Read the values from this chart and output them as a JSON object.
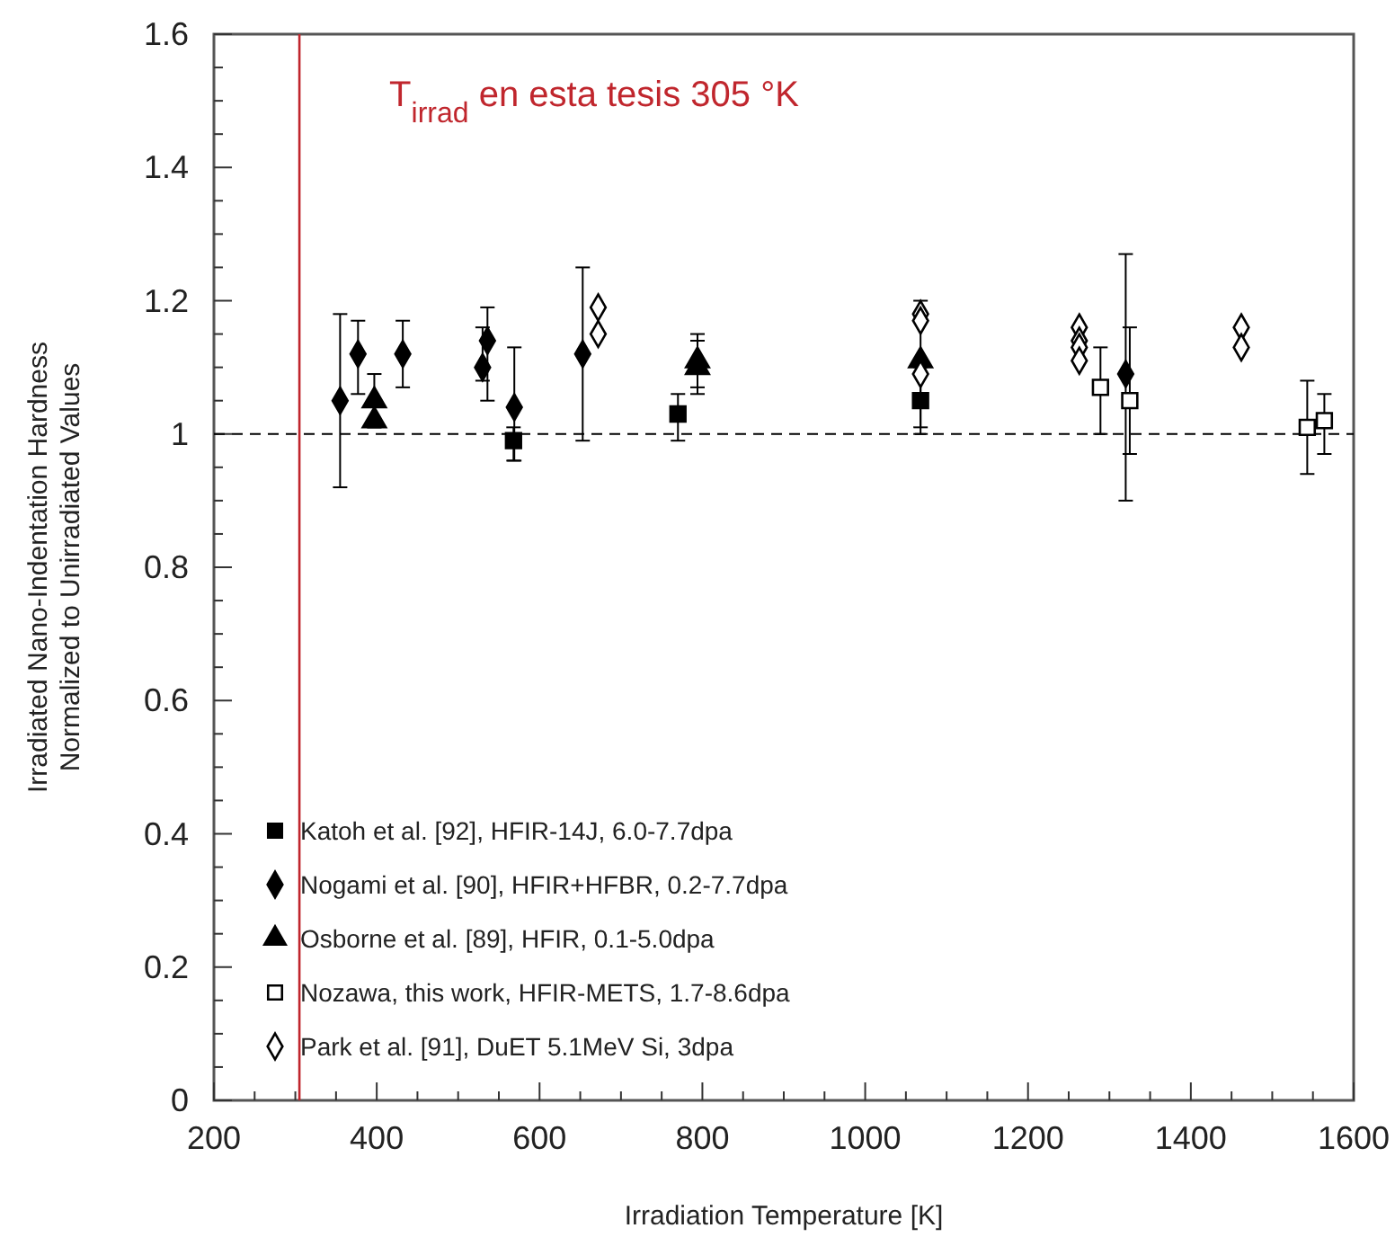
{
  "chart_data": {
    "type": "scatter",
    "xlabel": "Irradiation Temperature [K]",
    "ylabel": "Irradiated Nano-Indentation Hardness\nNormalized to Unirradiated Values",
    "xlim": [
      200,
      1600
    ],
    "ylim": [
      0,
      1.6
    ],
    "xticks": [
      200,
      {
        "value": 250,
        "label": null
      },
      {
        "value": 300,
        "label": null
      },
      {
        "value": 350,
        "label": null
      },
      400,
      {
        "value": 450,
        "label": null
      },
      {
        "value": 500,
        "label": null
      },
      {
        "value": 550,
        "label": null
      },
      600,
      {
        "value": 650,
        "label": null
      },
      {
        "value": 700,
        "label": null
      },
      {
        "value": 750,
        "label": null
      },
      800,
      {
        "value": 850,
        "label": null
      },
      {
        "value": 900,
        "label": null
      },
      {
        "value": 950,
        "label": null
      },
      1000,
      {
        "value": 1050,
        "label": null
      },
      {
        "value": 1100,
        "label": null
      },
      {
        "value": 1150,
        "label": null
      },
      1200,
      {
        "value": 1250,
        "label": null
      },
      {
        "value": 1300,
        "label": null
      },
      {
        "value": 1350,
        "label": null
      },
      1400,
      {
        "value": 1450,
        "label": null
      },
      {
        "value": 1500,
        "label": null
      },
      {
        "value": 1550,
        "label": null
      },
      1600
    ],
    "yticks": [
      0,
      {
        "value": 0.05,
        "label": null
      },
      {
        "value": 0.1,
        "label": null
      },
      {
        "value": 0.15,
        "label": null
      },
      0.2,
      {
        "value": 0.25,
        "label": null
      },
      {
        "value": 0.3,
        "label": null
      },
      {
        "value": 0.35,
        "label": null
      },
      0.4,
      {
        "value": 0.45,
        "label": null
      },
      {
        "value": 0.5,
        "label": null
      },
      {
        "value": 0.55,
        "label": null
      },
      0.6,
      {
        "value": 0.65,
        "label": null
      },
      {
        "value": 0.7,
        "label": null
      },
      {
        "value": 0.75,
        "label": null
      },
      0.8,
      {
        "value": 0.85,
        "label": null
      },
      {
        "value": 0.9,
        "label": null
      },
      {
        "value": 0.95,
        "label": null
      },
      1,
      {
        "value": 1.05,
        "label": null
      },
      {
        "value": 1.1,
        "label": null
      },
      {
        "value": 1.15,
        "label": null
      },
      1.2,
      {
        "value": 1.25,
        "label": null
      },
      {
        "value": 1.3,
        "label": null
      },
      {
        "value": 1.35,
        "label": null
      },
      1.4,
      {
        "value": 1.45,
        "label": null
      },
      {
        "value": 1.5,
        "label": null
      },
      {
        "value": 1.55,
        "label": null
      },
      1.6
    ],
    "legend": "bottom left",
    "grid": false,
    "ref_lines": [
      {
        "axis": "y",
        "value": 1,
        "color": "#000000",
        "line_style": "dashed"
      },
      {
        "axis": "x",
        "value": 305,
        "color": "#c0262d",
        "line_style": "solid",
        "label": "T$_{irrad}$ en esta tesis 305 °K"
      }
    ],
    "series": [
      {
        "name": "Katoh et al. [92], HFIR-14J, 6.0-7.7dpa",
        "marker": "square",
        "color": "#000000",
        "x": [
          568,
          770,
          1068
        ],
        "values": [
          0.99,
          1.03,
          1.05
        ],
        "errors": [
          [
            0.96,
            1.01
          ],
          [
            0.99,
            1.06
          ],
          [
            1.01,
            1.1
          ]
        ]
      },
      {
        "name": "Nogami et al. [90], HFIR+HFBR,  0.2-7.7dpa",
        "marker": "diamond",
        "color": "#000000",
        "x": [
          355,
          377,
          432,
          530,
          536,
          569,
          653,
          1320
        ],
        "values": [
          1.05,
          1.12,
          1.12,
          1.1,
          1.14,
          1.04,
          1.12,
          1.09
        ],
        "errors": [
          [
            0.92,
            1.18
          ],
          [
            1.06,
            1.17
          ],
          [
            1.07,
            1.17
          ],
          [
            1.08,
            1.16
          ],
          [
            1.05,
            1.19
          ],
          [
            0.96,
            1.13
          ],
          [
            0.99,
            1.25
          ],
          [
            0.9,
            1.27
          ]
        ]
      },
      {
        "name": "Osborne et al. [89], HFIR, 0.1-5.0dpa",
        "marker": "triangle",
        "color": "#000000",
        "x": [
          397,
          397,
          794,
          794,
          1068
        ],
        "values": [
          1.05,
          1.02,
          1.11,
          1.1,
          1.11
        ],
        "errors": [
          [
            1.01,
            1.09
          ],
          [
            1.01,
            1.05
          ],
          [
            1.06,
            1.15
          ],
          [
            1.07,
            1.14
          ],
          [
            1.0,
            1.2
          ]
        ]
      },
      {
        "name": "Nozawa, this work, HFIR-METS,  1.7-8.6dpa",
        "marker": "square",
        "color": "#ffffff",
        "x": [
          1289,
          1325,
          1543,
          1564
        ],
        "values": [
          1.07,
          1.05,
          1.01,
          1.02
        ],
        "errors": [
          [
            1.0,
            1.13
          ],
          [
            0.97,
            1.16
          ],
          [
            0.94,
            1.08
          ],
          [
            0.97,
            1.06
          ]
        ]
      },
      {
        "name": "Park et al. [91], DuET 5.1MeV Si, 3dpa",
        "marker": "diamond",
        "color": "#ffffff",
        "x": [
          672,
          672,
          1068,
          1068,
          1068,
          1263,
          1263,
          1263,
          1263,
          1462,
          1462
        ],
        "values": [
          1.19,
          1.15,
          1.18,
          1.17,
          1.09,
          1.16,
          1.14,
          1.13,
          1.11,
          1.16,
          1.13
        ]
      }
    ]
  }
}
